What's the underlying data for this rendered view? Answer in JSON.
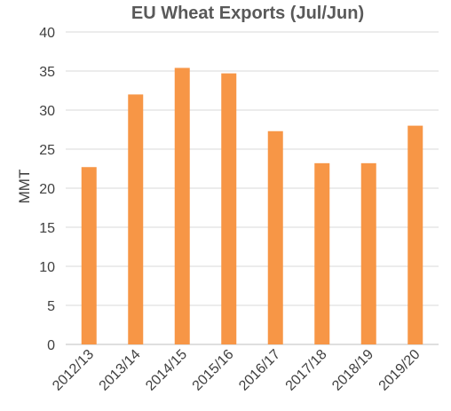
{
  "chart_data": {
    "type": "bar",
    "title": "EU Wheat Exports (Jul/Jun)",
    "xlabel": "",
    "ylabel": "MMT",
    "ylim": [
      0,
      40
    ],
    "yticks": [
      0,
      5,
      10,
      15,
      20,
      25,
      30,
      35,
      40
    ],
    "grid": true,
    "legend": "none",
    "bar_color": "#F79646",
    "categories": [
      "2012/13",
      "2013/14",
      "2014/15",
      "2015/16",
      "2016/17",
      "2017/18",
      "2018/19",
      "2019/20"
    ],
    "values": [
      22.7,
      32.0,
      35.4,
      34.7,
      27.3,
      23.2,
      23.2,
      28.0
    ]
  }
}
